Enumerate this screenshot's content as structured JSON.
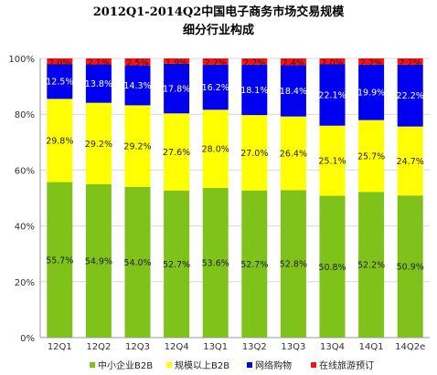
{
  "chart_data": {
    "type": "bar",
    "stacked": true,
    "title": "2012Q1-2014Q2中国电子商务市场交易规模",
    "subtitle": "细分行业构成",
    "categories": [
      "12Q1",
      "12Q2",
      "12Q3",
      "12Q4",
      "13Q1",
      "13Q2",
      "13Q3",
      "13Q4",
      "14Q1",
      "14Q2e"
    ],
    "y_ticks": [
      "0%",
      "20%",
      "40%",
      "60%",
      "80%",
      "100%"
    ],
    "ylim": [
      0,
      100
    ],
    "grid": true,
    "legend_position": "bottom",
    "series": [
      {
        "name": "中小企业B2B",
        "color": "#7ec21a",
        "values": [
          55.7,
          54.9,
          54.0,
          52.7,
          53.6,
          52.7,
          52.8,
          50.8,
          52.2,
          50.9
        ],
        "labels": [
          "55.7%",
          "54.9%",
          "54.0%",
          "52.7%",
          "53.6%",
          "52.7%",
          "52.8%",
          "50.8%",
          "52.2%",
          "50.9%"
        ]
      },
      {
        "name": "规模以上B2B",
        "color": "#ffff00",
        "values": [
          29.8,
          29.2,
          29.2,
          27.6,
          28.0,
          27.0,
          26.4,
          25.1,
          25.7,
          24.7
        ],
        "labels": [
          "29.8%",
          "29.2%",
          "29.2%",
          "27.6%",
          "28.0%",
          "27.0%",
          "26.4%",
          "25.1%",
          "25.7%",
          "24.7%"
        ]
      },
      {
        "name": "网络购物",
        "color": "#0000f0",
        "values": [
          12.5,
          13.8,
          14.3,
          17.8,
          16.2,
          18.1,
          18.4,
          22.1,
          19.9,
          22.2
        ],
        "labels": [
          "12.5%",
          "13.8%",
          "14.3%",
          "17.8%",
          "16.2%",
          "18.1%",
          "18.4%",
          "22.1%",
          "19.9%",
          "22.2%"
        ]
      },
      {
        "name": "在线旅游预订",
        "color": "#ff1010",
        "values": [
          2.0,
          2.1,
          2.5,
          1.9,
          2.2,
          2.2,
          2.4,
          2.0,
          2.2,
          2.2
        ],
        "labels": [
          "2.0%",
          "2.1%",
          "2.5%",
          "1.9%",
          "2.2%",
          "2.2%",
          "2.4%",
          "2.0%",
          "2.2%",
          "2.2%"
        ]
      }
    ]
  }
}
